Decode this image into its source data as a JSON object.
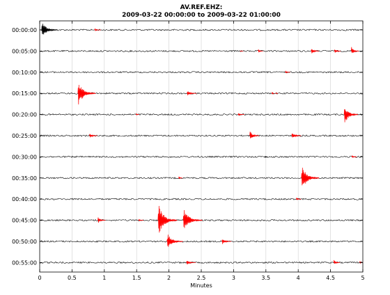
{
  "chart_data": {
    "type": "line",
    "title_line1": "AV.REF.EHZ:",
    "title_line2": "2009-03-22 00:00:00 to 2009-03-22 01:00:00",
    "xlabel": "Minutes",
    "xlim": [
      0,
      5
    ],
    "x_ticks": [
      0,
      0.5,
      1,
      1.5,
      2,
      2.5,
      3,
      3.5,
      4,
      4.5,
      5
    ],
    "x_tick_labels": [
      "0",
      "0.5",
      "1",
      "1.5",
      "2",
      "2.5",
      "3",
      "3.5",
      "4",
      "4.5",
      "5"
    ],
    "grid": true,
    "row_labels": [
      "00:00:00",
      "00:05:00",
      "00:10:00",
      "00:15:00",
      "00:20:00",
      "00:25:00",
      "00:30:00",
      "00:35:00",
      "00:40:00",
      "00:45:00",
      "00:50:00",
      "00:55:00"
    ],
    "trace_color": "#000000",
    "event_color": "#ff0000",
    "events": [
      {
        "row": 0,
        "minute": 0.03,
        "amplitude": 1.0,
        "duration": 0.25,
        "color": "black"
      },
      {
        "row": 0,
        "minute": 0.85,
        "amplitude": 0.15,
        "duration": 0.1,
        "color": "red"
      },
      {
        "row": 1,
        "minute": 3.1,
        "amplitude": 0.08,
        "duration": 0.05,
        "color": "red"
      },
      {
        "row": 1,
        "minute": 3.38,
        "amplitude": 0.25,
        "duration": 0.08,
        "color": "red"
      },
      {
        "row": 1,
        "minute": 4.2,
        "amplitude": 0.5,
        "duration": 0.12,
        "color": "red"
      },
      {
        "row": 1,
        "minute": 4.56,
        "amplitude": 0.3,
        "duration": 0.1,
        "color": "red"
      },
      {
        "row": 1,
        "minute": 4.82,
        "amplitude": 0.55,
        "duration": 0.12,
        "color": "red"
      },
      {
        "row": 2,
        "minute": 3.8,
        "amplitude": 0.15,
        "duration": 0.08,
        "color": "red"
      },
      {
        "row": 3,
        "minute": 0.59,
        "amplitude": 1.5,
        "duration": 0.28,
        "color": "red"
      },
      {
        "row": 3,
        "minute": 2.28,
        "amplitude": 0.35,
        "duration": 0.15,
        "color": "red"
      },
      {
        "row": 3,
        "minute": 3.59,
        "amplitude": 0.25,
        "duration": 0.04,
        "color": "red"
      },
      {
        "row": 3,
        "minute": 3.65,
        "amplitude": 0.1,
        "duration": 0.04,
        "color": "red"
      },
      {
        "row": 4,
        "minute": 1.49,
        "amplitude": 0.15,
        "duration": 0.05,
        "color": "red"
      },
      {
        "row": 4,
        "minute": 3.07,
        "amplitude": 0.2,
        "duration": 0.1,
        "color": "red"
      },
      {
        "row": 4,
        "minute": 4.71,
        "amplitude": 1.2,
        "duration": 0.22,
        "color": "red"
      },
      {
        "row": 5,
        "minute": 0.77,
        "amplitude": 0.35,
        "duration": 0.12,
        "color": "red"
      },
      {
        "row": 5,
        "minute": 3.25,
        "amplitude": 0.6,
        "duration": 0.15,
        "color": "red"
      },
      {
        "row": 5,
        "minute": 3.9,
        "amplitude": 0.5,
        "duration": 0.15,
        "color": "red"
      },
      {
        "row": 6,
        "minute": 3.48,
        "amplitude": 0.1,
        "duration": 0.05,
        "color": "black"
      },
      {
        "row": 6,
        "minute": 4.83,
        "amplitude": 0.2,
        "duration": 0.08,
        "color": "red"
      },
      {
        "row": 7,
        "minute": 2.15,
        "amplitude": 0.2,
        "duration": 0.06,
        "color": "red"
      },
      {
        "row": 7,
        "minute": 4.05,
        "amplitude": 1.6,
        "duration": 0.28,
        "color": "red"
      },
      {
        "row": 8,
        "minute": 3.97,
        "amplitude": 0.2,
        "duration": 0.08,
        "color": "red"
      },
      {
        "row": 9,
        "minute": 0.9,
        "amplitude": 0.4,
        "duration": 0.12,
        "color": "red"
      },
      {
        "row": 9,
        "minute": 1.53,
        "amplitude": 0.15,
        "duration": 0.08,
        "color": "red"
      },
      {
        "row": 9,
        "minute": 1.83,
        "amplitude": 2.0,
        "duration": 0.3,
        "color": "red"
      },
      {
        "row": 9,
        "minute": 2.22,
        "amplitude": 1.4,
        "duration": 0.3,
        "color": "red"
      },
      {
        "row": 10,
        "minute": 1.97,
        "amplitude": 1.0,
        "duration": 0.25,
        "color": "red"
      },
      {
        "row": 10,
        "minute": 2.82,
        "amplitude": 0.4,
        "duration": 0.15,
        "color": "red"
      },
      {
        "row": 11,
        "minute": 2.27,
        "amplitude": 0.3,
        "duration": 0.15,
        "color": "red"
      },
      {
        "row": 11,
        "minute": 4.55,
        "amplitude": 0.35,
        "duration": 0.1,
        "color": "red"
      },
      {
        "row": 11,
        "minute": 4.95,
        "amplitude": 0.25,
        "duration": 0.06,
        "color": "red"
      }
    ]
  }
}
